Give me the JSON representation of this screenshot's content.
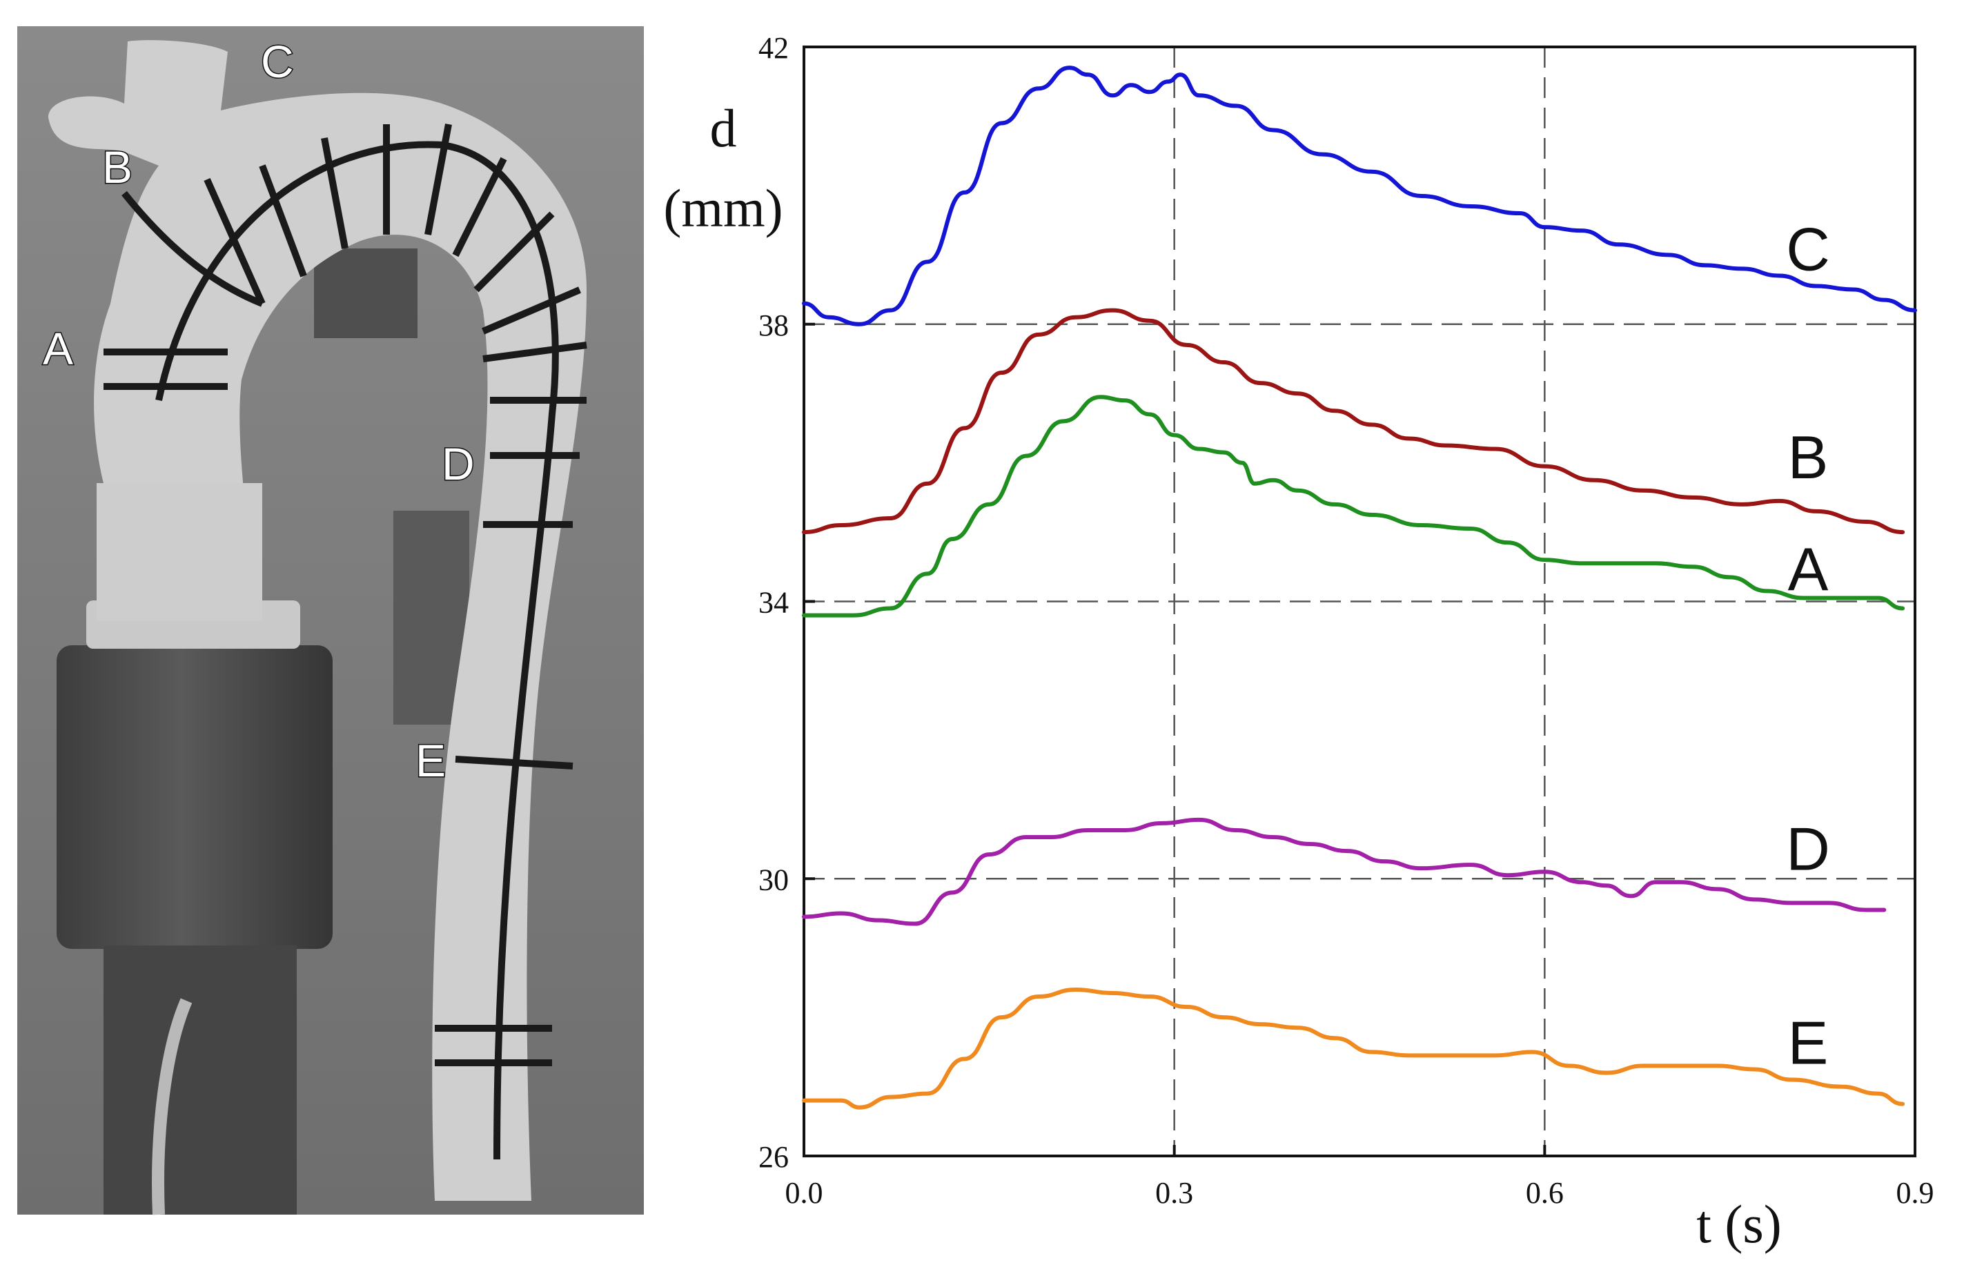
{
  "photo": {
    "labels": [
      "A",
      "B",
      "C",
      "D",
      "E"
    ]
  },
  "chart_data": {
    "type": "line",
    "title": "",
    "xlabel": "t (s)",
    "ylabel_line1": "d",
    "ylabel_line2": "(mm)",
    "xlim": [
      0,
      0.9
    ],
    "ylim": [
      26,
      42
    ],
    "x_ticks": [
      0.0,
      0.3,
      0.6,
      0.9
    ],
    "x_tick_labels": [
      "0.0",
      "0.3",
      "0.6",
      "0.9"
    ],
    "y_ticks": [
      26,
      30,
      34,
      38,
      42
    ],
    "y_tick_labels": [
      "26",
      "30",
      "34",
      "38",
      "42"
    ],
    "grid": "dashed at x = 0.3, 0.6 and y = 30, 34, 38",
    "series": [
      {
        "name": "C",
        "color": "#1515d6",
        "points": [
          [
            0,
            38.3
          ],
          [
            0.02,
            38.1
          ],
          [
            0.045,
            38.0
          ],
          [
            0.07,
            38.2
          ],
          [
            0.1,
            38.9
          ],
          [
            0.13,
            39.9
          ],
          [
            0.16,
            40.9
          ],
          [
            0.19,
            41.4
          ],
          [
            0.215,
            41.7
          ],
          [
            0.23,
            41.6
          ],
          [
            0.25,
            41.3
          ],
          [
            0.265,
            41.45
          ],
          [
            0.28,
            41.35
          ],
          [
            0.295,
            41.5
          ],
          [
            0.305,
            41.6
          ],
          [
            0.32,
            41.3
          ],
          [
            0.35,
            41.15
          ],
          [
            0.38,
            40.8
          ],
          [
            0.42,
            40.45
          ],
          [
            0.46,
            40.2
          ],
          [
            0.5,
            39.85
          ],
          [
            0.54,
            39.7
          ],
          [
            0.58,
            39.6
          ],
          [
            0.6,
            39.4
          ],
          [
            0.63,
            39.35
          ],
          [
            0.66,
            39.15
          ],
          [
            0.7,
            39.0
          ],
          [
            0.73,
            38.85
          ],
          [
            0.76,
            38.8
          ],
          [
            0.79,
            38.7
          ],
          [
            0.82,
            38.55
          ],
          [
            0.85,
            38.5
          ],
          [
            0.875,
            38.35
          ],
          [
            0.9,
            38.2
          ]
        ]
      },
      {
        "name": "B",
        "color": "#9b1515",
        "points": [
          [
            0,
            35.0
          ],
          [
            0.03,
            35.1
          ],
          [
            0.07,
            35.2
          ],
          [
            0.1,
            35.7
          ],
          [
            0.13,
            36.5
          ],
          [
            0.16,
            37.3
          ],
          [
            0.19,
            37.85
          ],
          [
            0.22,
            38.1
          ],
          [
            0.25,
            38.2
          ],
          [
            0.28,
            38.05
          ],
          [
            0.31,
            37.7
          ],
          [
            0.34,
            37.45
          ],
          [
            0.37,
            37.15
          ],
          [
            0.4,
            37.0
          ],
          [
            0.43,
            36.75
          ],
          [
            0.46,
            36.55
          ],
          [
            0.49,
            36.35
          ],
          [
            0.52,
            36.25
          ],
          [
            0.56,
            36.2
          ],
          [
            0.6,
            35.95
          ],
          [
            0.64,
            35.75
          ],
          [
            0.68,
            35.6
          ],
          [
            0.72,
            35.5
          ],
          [
            0.76,
            35.4
          ],
          [
            0.79,
            35.45
          ],
          [
            0.82,
            35.3
          ],
          [
            0.86,
            35.15
          ],
          [
            0.89,
            35.0
          ]
        ]
      },
      {
        "name": "A",
        "color": "#1f8f1f",
        "points": [
          [
            0,
            33.8
          ],
          [
            0.04,
            33.8
          ],
          [
            0.07,
            33.9
          ],
          [
            0.1,
            34.4
          ],
          [
            0.12,
            34.9
          ],
          [
            0.15,
            35.4
          ],
          [
            0.18,
            36.1
          ],
          [
            0.21,
            36.6
          ],
          [
            0.24,
            36.95
          ],
          [
            0.26,
            36.9
          ],
          [
            0.28,
            36.7
          ],
          [
            0.3,
            36.4
          ],
          [
            0.32,
            36.2
          ],
          [
            0.34,
            36.15
          ],
          [
            0.355,
            36.0
          ],
          [
            0.365,
            35.7
          ],
          [
            0.38,
            35.75
          ],
          [
            0.4,
            35.6
          ],
          [
            0.43,
            35.4
          ],
          [
            0.46,
            35.25
          ],
          [
            0.5,
            35.1
          ],
          [
            0.54,
            35.05
          ],
          [
            0.57,
            34.85
          ],
          [
            0.6,
            34.6
          ],
          [
            0.63,
            34.55
          ],
          [
            0.66,
            34.55
          ],
          [
            0.69,
            34.55
          ],
          [
            0.72,
            34.5
          ],
          [
            0.75,
            34.35
          ],
          [
            0.78,
            34.15
          ],
          [
            0.81,
            34.05
          ],
          [
            0.84,
            34.05
          ],
          [
            0.87,
            34.05
          ],
          [
            0.89,
            33.9
          ]
        ]
      },
      {
        "name": "D",
        "color": "#a320a8",
        "points": [
          [
            0,
            29.45
          ],
          [
            0.03,
            29.5
          ],
          [
            0.06,
            29.4
          ],
          [
            0.09,
            29.35
          ],
          [
            0.12,
            29.8
          ],
          [
            0.15,
            30.35
          ],
          [
            0.18,
            30.6
          ],
          [
            0.2,
            30.6
          ],
          [
            0.23,
            30.7
          ],
          [
            0.26,
            30.7
          ],
          [
            0.29,
            30.8
          ],
          [
            0.32,
            30.85
          ],
          [
            0.35,
            30.7
          ],
          [
            0.38,
            30.6
          ],
          [
            0.41,
            30.5
          ],
          [
            0.44,
            30.4
          ],
          [
            0.47,
            30.25
          ],
          [
            0.5,
            30.15
          ],
          [
            0.54,
            30.2
          ],
          [
            0.57,
            30.05
          ],
          [
            0.6,
            30.1
          ],
          [
            0.63,
            29.95
          ],
          [
            0.65,
            29.9
          ],
          [
            0.67,
            29.75
          ],
          [
            0.69,
            29.95
          ],
          [
            0.71,
            29.95
          ],
          [
            0.74,
            29.85
          ],
          [
            0.77,
            29.7
          ],
          [
            0.8,
            29.65
          ],
          [
            0.83,
            29.65
          ],
          [
            0.86,
            29.55
          ],
          [
            0.875,
            29.55
          ]
        ]
      },
      {
        "name": "E",
        "color": "#f08a1e",
        "points": [
          [
            0,
            26.8
          ],
          [
            0.03,
            26.8
          ],
          [
            0.045,
            26.7
          ],
          [
            0.07,
            26.85
          ],
          [
            0.1,
            26.9
          ],
          [
            0.13,
            27.4
          ],
          [
            0.16,
            28.0
          ],
          [
            0.19,
            28.3
          ],
          [
            0.22,
            28.4
          ],
          [
            0.25,
            28.35
          ],
          [
            0.28,
            28.3
          ],
          [
            0.31,
            28.15
          ],
          [
            0.34,
            28.0
          ],
          [
            0.37,
            27.9
          ],
          [
            0.4,
            27.85
          ],
          [
            0.43,
            27.7
          ],
          [
            0.46,
            27.5
          ],
          [
            0.49,
            27.45
          ],
          [
            0.52,
            27.45
          ],
          [
            0.56,
            27.45
          ],
          [
            0.59,
            27.5
          ],
          [
            0.62,
            27.3
          ],
          [
            0.65,
            27.2
          ],
          [
            0.68,
            27.3
          ],
          [
            0.71,
            27.3
          ],
          [
            0.74,
            27.3
          ],
          [
            0.77,
            27.25
          ],
          [
            0.8,
            27.1
          ],
          [
            0.84,
            27.0
          ],
          [
            0.87,
            26.9
          ],
          [
            0.89,
            26.75
          ]
        ]
      }
    ]
  }
}
